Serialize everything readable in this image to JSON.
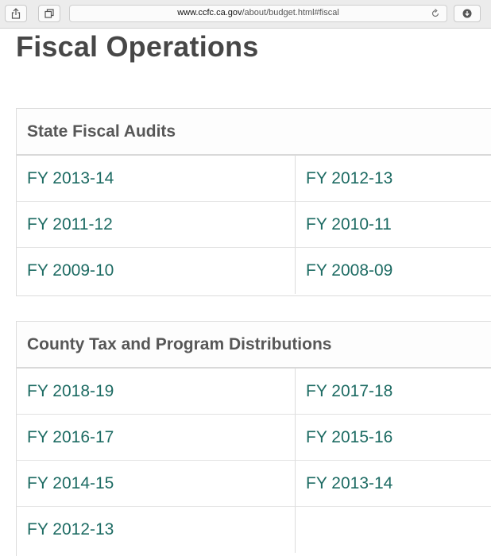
{
  "browser": {
    "url_host": "www.ccfc.ca.gov",
    "url_path": "/about/budget.html#fiscal",
    "icons": [
      "share-icon",
      "tabs-icon",
      "reload-icon",
      "download-icon"
    ]
  },
  "page": {
    "title": "Fiscal Operations"
  },
  "sections": [
    {
      "title": "State Fiscal Audits",
      "links": [
        "FY 2013-14",
        "FY 2012-13",
        "FY 2011-12",
        "FY 2010-11",
        "FY 2009-10",
        "FY 2008-09"
      ]
    },
    {
      "title": "County Tax and Program Distributions",
      "links": [
        "FY 2018-19",
        "FY 2017-18",
        "FY 2016-17",
        "FY 2015-16",
        "FY 2014-15",
        "FY 2013-14",
        "FY 2012-13"
      ]
    }
  ],
  "colors": {
    "link": "#1d6b63",
    "heading": "#474747",
    "panel_title": "#575757"
  }
}
